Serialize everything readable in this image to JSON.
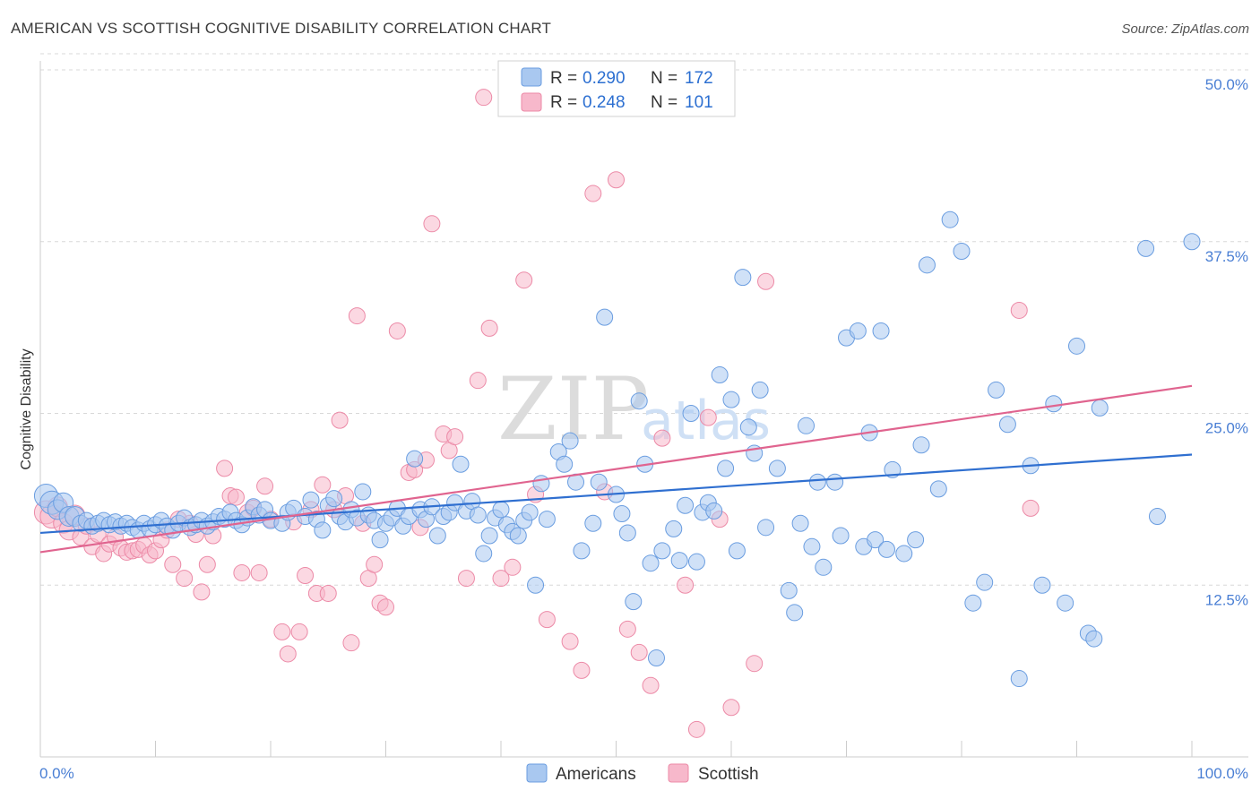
{
  "title": "AMERICAN VS SCOTTISH COGNITIVE DISABILITY CORRELATION CHART",
  "source": "Source: ZipAtlas.com",
  "watermark": {
    "zip": "ZIP",
    "atlas": "atlas"
  },
  "colors": {
    "americans_fill": "#a9c8f0",
    "americans_stroke": "#6a9de0",
    "americans_line": "#2f6fd0",
    "scottish_fill": "#f7b8cb",
    "scottish_stroke": "#ec8aa7",
    "scottish_line": "#e0648f",
    "grid": "#d8d8d8",
    "tick_text": "#4a7fd4"
  },
  "legend": {
    "americans": {
      "r_label": "R =",
      "r_value": "0.290",
      "n_label": "N =",
      "n_value": "172"
    },
    "scottish": {
      "r_label": "R =",
      "r_value": "0.248",
      "n_label": "N =",
      "n_value": "101"
    }
  },
  "bottom_legend": {
    "americans": "Americans",
    "scottish": "Scottish"
  },
  "chart_data": {
    "type": "scatter",
    "title": "AMERICAN VS SCOTTISH COGNITIVE DISABILITY CORRELATION CHART",
    "xlabel": "",
    "ylabel": "Cognitive Disability",
    "xlim": [
      0,
      100
    ],
    "ylim": [
      0,
      50
    ],
    "x_tick_labels": [
      "0.0%",
      "100.0%"
    ],
    "y_ticks": [
      12.5,
      25.0,
      37.5,
      50.0
    ],
    "y_tick_labels": [
      "12.5%",
      "25.0%",
      "37.5%",
      "50.0%"
    ],
    "grid": true,
    "legend_position": "top-center",
    "series": [
      {
        "name": "Americans",
        "r": 0.29,
        "n": 172,
        "trend": {
          "x": [
            0,
            100
          ],
          "y": [
            16.3,
            22.0
          ]
        },
        "points": [
          [
            0.5,
            19.0
          ],
          [
            1,
            18.5
          ],
          [
            1.5,
            18.0
          ],
          [
            2,
            18.5
          ],
          [
            2.5,
            17.5
          ],
          [
            3,
            17.5
          ],
          [
            3.5,
            17.0
          ],
          [
            4,
            17.2
          ],
          [
            4.5,
            16.8
          ],
          [
            5,
            17.0
          ],
          [
            5.5,
            17.2
          ],
          [
            6,
            16.9
          ],
          [
            6.5,
            17.1
          ],
          [
            7,
            16.8
          ],
          [
            7.5,
            17.0
          ],
          [
            8,
            16.7
          ],
          [
            8.5,
            16.5
          ],
          [
            9,
            17.0
          ],
          [
            9.5,
            16.6
          ],
          [
            10,
            16.9
          ],
          [
            10.5,
            17.2
          ],
          [
            11,
            16.8
          ],
          [
            11.5,
            16.5
          ],
          [
            12,
            17.0
          ],
          [
            12.5,
            17.4
          ],
          [
            13,
            16.7
          ],
          [
            13.5,
            16.9
          ],
          [
            14,
            17.2
          ],
          [
            14.5,
            16.8
          ],
          [
            15,
            17.1
          ],
          [
            15.5,
            17.5
          ],
          [
            16,
            17.3
          ],
          [
            16.5,
            17.8
          ],
          [
            17,
            17.2
          ],
          [
            17.5,
            16.9
          ],
          [
            18,
            17.4
          ],
          [
            18.5,
            18.2
          ],
          [
            19,
            17.6
          ],
          [
            19.5,
            18.0
          ],
          [
            20,
            17.2
          ],
          [
            21,
            17.0
          ],
          [
            21.5,
            17.8
          ],
          [
            22,
            18.1
          ],
          [
            23,
            17.5
          ],
          [
            23.5,
            18.7
          ],
          [
            24,
            17.3
          ],
          [
            24.5,
            16.5
          ],
          [
            25,
            18.3
          ],
          [
            25.5,
            18.8
          ],
          [
            26,
            17.5
          ],
          [
            26.5,
            17.1
          ],
          [
            27,
            18.0
          ],
          [
            27.5,
            17.4
          ],
          [
            28,
            19.3
          ],
          [
            28.5,
            17.6
          ],
          [
            29,
            17.2
          ],
          [
            29.5,
            15.8
          ],
          [
            30,
            17.0
          ],
          [
            30.5,
            17.4
          ],
          [
            31,
            18.1
          ],
          [
            31.5,
            16.8
          ],
          [
            32,
            17.5
          ],
          [
            32.5,
            21.7
          ],
          [
            33,
            18.0
          ],
          [
            33.5,
            17.3
          ],
          [
            34,
            18.2
          ],
          [
            34.5,
            16.1
          ],
          [
            35,
            17.5
          ],
          [
            35.5,
            17.8
          ],
          [
            36,
            18.5
          ],
          [
            36.5,
            21.3
          ],
          [
            37,
            17.9
          ],
          [
            37.5,
            18.6
          ],
          [
            38,
            17.6
          ],
          [
            38.5,
            14.8
          ],
          [
            39,
            16.1
          ],
          [
            39.5,
            17.4
          ],
          [
            40,
            18.0
          ],
          [
            40.5,
            16.9
          ],
          [
            41,
            16.4
          ],
          [
            41.5,
            16.1
          ],
          [
            42,
            17.2
          ],
          [
            42.5,
            17.8
          ],
          [
            43,
            12.5
          ],
          [
            43.5,
            19.9
          ],
          [
            44,
            17.3
          ],
          [
            45,
            22.2
          ],
          [
            45.5,
            21.3
          ],
          [
            46,
            23.0
          ],
          [
            46.5,
            20.0
          ],
          [
            47,
            15.0
          ],
          [
            48,
            17.0
          ],
          [
            48.5,
            20.0
          ],
          [
            49,
            32.0
          ],
          [
            50,
            19.1
          ],
          [
            50.5,
            17.7
          ],
          [
            51,
            16.3
          ],
          [
            51.5,
            11.3
          ],
          [
            52,
            25.9
          ],
          [
            52.5,
            21.3
          ],
          [
            53,
            14.1
          ],
          [
            53.5,
            7.2
          ],
          [
            54,
            15.0
          ],
          [
            55,
            16.6
          ],
          [
            55.5,
            14.3
          ],
          [
            56,
            18.3
          ],
          [
            56.5,
            25.0
          ],
          [
            57,
            14.2
          ],
          [
            57.5,
            17.8
          ],
          [
            58,
            18.5
          ],
          [
            58.5,
            17.9
          ],
          [
            59,
            27.8
          ],
          [
            59.5,
            21.0
          ],
          [
            60,
            26.0
          ],
          [
            60.5,
            15.0
          ],
          [
            61,
            34.9
          ],
          [
            61.5,
            24.0
          ],
          [
            62,
            22.1
          ],
          [
            62.5,
            26.7
          ],
          [
            63,
            16.7
          ],
          [
            64,
            21.0
          ],
          [
            65,
            12.1
          ],
          [
            65.5,
            10.5
          ],
          [
            66,
            17.0
          ],
          [
            66.5,
            24.1
          ],
          [
            67,
            15.3
          ],
          [
            67.5,
            20.0
          ],
          [
            68,
            13.8
          ],
          [
            69,
            20.0
          ],
          [
            69.5,
            16.1
          ],
          [
            70,
            30.5
          ],
          [
            71,
            31.0
          ],
          [
            71.5,
            15.3
          ],
          [
            72,
            23.6
          ],
          [
            72.5,
            15.8
          ],
          [
            73,
            31.0
          ],
          [
            73.5,
            15.1
          ],
          [
            74,
            20.9
          ],
          [
            75,
            14.8
          ],
          [
            76,
            15.8
          ],
          [
            76.5,
            22.7
          ],
          [
            77,
            35.8
          ],
          [
            78,
            19.5
          ],
          [
            79,
            39.1
          ],
          [
            80,
            36.8
          ],
          [
            81,
            11.2
          ],
          [
            82,
            12.7
          ],
          [
            83,
            26.7
          ],
          [
            84,
            24.2
          ],
          [
            85,
            5.7
          ],
          [
            86,
            21.2
          ],
          [
            87,
            12.5
          ],
          [
            88,
            25.7
          ],
          [
            89,
            11.2
          ],
          [
            90,
            29.9
          ],
          [
            91,
            9.0
          ],
          [
            91.5,
            8.6
          ],
          [
            92,
            25.4
          ],
          [
            96,
            37.0
          ],
          [
            97,
            17.5
          ],
          [
            100,
            37.5
          ]
        ]
      },
      {
        "name": "Scottish",
        "r": 0.248,
        "n": 101,
        "trend": {
          "x": [
            0,
            100
          ],
          "y": [
            14.9,
            27.0
          ]
        },
        "points": [
          [
            0.5,
            17.8
          ],
          [
            1,
            17.5
          ],
          [
            1.5,
            18.2
          ],
          [
            2,
            17.0
          ],
          [
            2.5,
            16.5
          ],
          [
            3,
            17.6
          ],
          [
            3.5,
            16.0
          ],
          [
            4,
            16.8
          ],
          [
            4.5,
            15.3
          ],
          [
            5,
            16.2
          ],
          [
            5.5,
            14.8
          ],
          [
            6,
            15.5
          ],
          [
            6.5,
            16.0
          ],
          [
            7,
            15.2
          ],
          [
            7.5,
            14.9
          ],
          [
            8,
            15.0
          ],
          [
            8.5,
            15.1
          ],
          [
            9,
            15.4
          ],
          [
            9.5,
            14.7
          ],
          [
            10,
            15.0
          ],
          [
            10.5,
            15.8
          ],
          [
            11,
            16.5
          ],
          [
            11.5,
            14.0
          ],
          [
            12,
            17.3
          ],
          [
            12.5,
            13.0
          ],
          [
            13,
            17.0
          ],
          [
            13.5,
            16.2
          ],
          [
            14,
            12.0
          ],
          [
            14.5,
            14.0
          ],
          [
            15,
            16.1
          ],
          [
            16,
            21.0
          ],
          [
            16.5,
            19.0
          ],
          [
            17,
            18.9
          ],
          [
            17.5,
            13.4
          ],
          [
            18,
            17.8
          ],
          [
            18.5,
            18.1
          ],
          [
            19,
            13.4
          ],
          [
            19.5,
            19.7
          ],
          [
            20,
            17.3
          ],
          [
            21,
            9.1
          ],
          [
            21.5,
            7.5
          ],
          [
            22,
            17.1
          ],
          [
            22.5,
            9.1
          ],
          [
            23,
            13.2
          ],
          [
            23.5,
            18.0
          ],
          [
            24,
            11.9
          ],
          [
            24.5,
            19.8
          ],
          [
            25,
            11.9
          ],
          [
            25.5,
            18.0
          ],
          [
            26,
            24.5
          ],
          [
            26.5,
            19.0
          ],
          [
            27,
            8.3
          ],
          [
            27.5,
            32.1
          ],
          [
            28,
            17.0
          ],
          [
            28.5,
            13.0
          ],
          [
            29,
            14.0
          ],
          [
            29.5,
            11.2
          ],
          [
            30,
            10.9
          ],
          [
            31,
            31.0
          ],
          [
            32,
            20.7
          ],
          [
            32.5,
            20.9
          ],
          [
            33,
            16.7
          ],
          [
            33.5,
            21.6
          ],
          [
            34,
            38.8
          ],
          [
            35,
            23.5
          ],
          [
            35.5,
            22.3
          ],
          [
            36,
            23.3
          ],
          [
            37,
            13.0
          ],
          [
            38,
            27.4
          ],
          [
            38.5,
            48.0
          ],
          [
            39,
            31.2
          ],
          [
            40,
            13.0
          ],
          [
            41,
            13.8
          ],
          [
            42,
            34.7
          ],
          [
            43,
            19.1
          ],
          [
            44,
            10.0
          ],
          [
            45,
            47.3
          ],
          [
            46,
            8.4
          ],
          [
            47,
            6.3
          ],
          [
            48,
            41.0
          ],
          [
            49,
            19.3
          ],
          [
            50,
            42.0
          ],
          [
            51,
            9.3
          ],
          [
            52,
            7.6
          ],
          [
            53,
            5.2
          ],
          [
            54,
            23.2
          ],
          [
            55,
            50.0
          ],
          [
            56,
            12.5
          ],
          [
            57,
            2.0
          ],
          [
            58,
            24.7
          ],
          [
            59,
            17.3
          ],
          [
            60,
            3.6
          ],
          [
            62,
            6.8
          ],
          [
            63,
            34.6
          ],
          [
            85,
            32.5
          ],
          [
            86,
            18.1
          ]
        ]
      }
    ]
  }
}
